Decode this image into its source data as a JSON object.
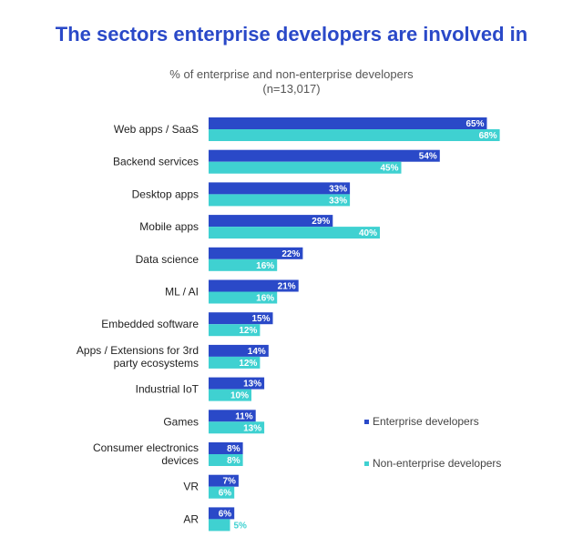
{
  "chart_data": {
    "type": "bar",
    "orientation": "horizontal",
    "title": "The sectors enterprise developers are involved in",
    "subtitle_line1": "% of enterprise and non-enterprise developers",
    "subtitle_line2": "(n=13,017)",
    "categories": [
      [
        "Web apps / SaaS"
      ],
      [
        "Backend services"
      ],
      [
        "Desktop apps"
      ],
      [
        "Mobile apps"
      ],
      [
        "Data science"
      ],
      [
        "ML / AI"
      ],
      [
        "Embedded software"
      ],
      [
        "Apps / Extensions for 3rd",
        "party ecosystems"
      ],
      [
        "Industrial IoT"
      ],
      [
        "Games"
      ],
      [
        "Consumer electronics",
        "devices"
      ],
      [
        "VR"
      ],
      [
        "AR"
      ]
    ],
    "series": [
      {
        "name": "Enterprise developers",
        "color": "#2a49c8",
        "values": [
          65,
          54,
          33,
          29,
          22,
          21,
          15,
          14,
          13,
          11,
          8,
          7,
          6
        ]
      },
      {
        "name": "Non-enterprise developers",
        "color": "#3fd1d1",
        "values": [
          68,
          45,
          33,
          40,
          16,
          16,
          12,
          12,
          10,
          13,
          8,
          6,
          5
        ]
      }
    ],
    "value_suffix": "%",
    "legend_position": "right",
    "grid": false
  }
}
